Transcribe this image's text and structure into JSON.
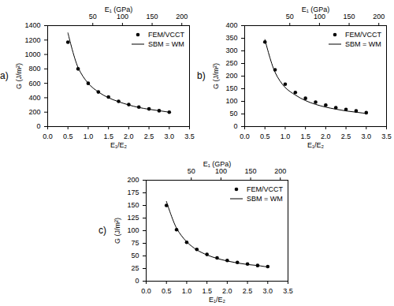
{
  "chart_data": [
    {
      "type": "line",
      "title": "a)",
      "xlabel": "E₁/E₂",
      "ylabel": "G (J/m²)",
      "x2label": "E₁ (GPa)",
      "xlim": [
        0,
        3.5
      ],
      "xticks": [
        {
          "value": 0,
          "label": "0.0"
        },
        {
          "value": 0.5,
          "label": "0.5"
        },
        {
          "value": 1,
          "label": "1.0"
        },
        {
          "value": 1.5,
          "label": "1.5"
        },
        {
          "value": 2,
          "label": "2.0"
        },
        {
          "value": 2.5,
          "label": "2.5"
        },
        {
          "value": 3,
          "label": "3.0"
        },
        {
          "value": 3.5,
          "label": "3.5"
        }
      ],
      "x2lim": [
        -26,
        213
      ],
      "x2ticks": [
        50,
        100,
        150,
        200
      ],
      "ylim": [
        0,
        1400
      ],
      "yticks": [
        0,
        200,
        400,
        600,
        800,
        1000,
        1200,
        1400
      ],
      "legend": "upper right",
      "grid": false,
      "x": [
        0.5,
        0.75,
        1.0,
        1.25,
        1.5,
        1.75,
        2.0,
        2.25,
        2.5,
        2.75,
        3.0
      ],
      "series": [
        {
          "name": "FEM/VCCT",
          "type": "scatter",
          "marker": "circle",
          "color": "#000000",
          "values": [
            1170,
            800,
            600,
            480,
            410,
            350,
            305,
            270,
            245,
            220,
            200
          ]
        },
        {
          "name": "SBM = WM",
          "type": "line",
          "line_style": "solid",
          "color": "#000000",
          "values": [
            1300,
            820,
            600,
            480,
            400,
            345,
            300,
            265,
            240,
            220,
            200
          ]
        }
      ]
    },
    {
      "type": "line",
      "title": "b)",
      "xlabel": "E₁/E₂",
      "ylabel": "G (J/m²)",
      "x2label": "E₁ (GPa)",
      "xlim": [
        0,
        3.5
      ],
      "xticks": [
        {
          "value": 0,
          "label": "0.0"
        },
        {
          "value": 0.5,
          "label": "0.5"
        },
        {
          "value": 1,
          "label": "1.0"
        },
        {
          "value": 1.5,
          "label": "1.5"
        },
        {
          "value": 2,
          "label": "2.0"
        },
        {
          "value": 2.5,
          "label": "2.5"
        },
        {
          "value": 3,
          "label": "3.0"
        },
        {
          "value": 3.5,
          "label": "3.5"
        }
      ],
      "x2lim": [
        -26,
        213
      ],
      "x2ticks": [
        50,
        100,
        150,
        200
      ],
      "ylim": [
        0,
        400
      ],
      "yticks": [
        0,
        50,
        100,
        150,
        200,
        250,
        300,
        350,
        400
      ],
      "legend": "upper right",
      "grid": false,
      "x": [
        0.5,
        0.75,
        1.0,
        1.25,
        1.5,
        1.75,
        2.0,
        2.25,
        2.5,
        2.75,
        3.0
      ],
      "series": [
        {
          "name": "FEM/VCCT",
          "type": "scatter",
          "marker": "circle",
          "color": "#000000",
          "values": [
            335,
            225,
            168,
            135,
            112,
            97,
            85,
            75,
            68,
            62,
            55
          ]
        },
        {
          "name": "SBM = WM",
          "type": "line",
          "line_style": "solid",
          "color": "#000000",
          "values": [
            345,
            215,
            155,
            125,
            103,
            88,
            77,
            69,
            62,
            57,
            52
          ]
        }
      ]
    },
    {
      "type": "line",
      "title": "c)",
      "xlabel": "E₁/E₂",
      "ylabel": "G (J/m²)",
      "x2label": "E₁ (GPa)",
      "xlim": [
        0,
        3.5
      ],
      "xticks": [
        {
          "value": 0,
          "label": "0.0"
        },
        {
          "value": 0.5,
          "label": "0.5"
        },
        {
          "value": 1,
          "label": "1.0"
        },
        {
          "value": 1.5,
          "label": "1.5"
        },
        {
          "value": 2,
          "label": "2.0"
        },
        {
          "value": 2.5,
          "label": "2.5"
        },
        {
          "value": 3,
          "label": "3.0"
        },
        {
          "value": 3.5,
          "label": "3.5"
        }
      ],
      "x2lim": [
        -26,
        213
      ],
      "x2ticks": [
        50,
        100,
        150,
        200
      ],
      "ylim": [
        0,
        200
      ],
      "yticks": [
        0,
        25,
        50,
        75,
        100,
        125,
        150,
        175,
        200
      ],
      "legend": "upper right",
      "grid": false,
      "x": [
        0.5,
        0.75,
        1.0,
        1.25,
        1.5,
        1.75,
        2.0,
        2.25,
        2.5,
        2.75,
        3.0
      ],
      "series": [
        {
          "name": "FEM/VCCT",
          "type": "scatter",
          "marker": "circle",
          "color": "#000000",
          "values": [
            150,
            102,
            77,
            63,
            53,
            46,
            41,
            37,
            34,
            31,
            29
          ]
        },
        {
          "name": "SBM = WM",
          "type": "line",
          "line_style": "solid",
          "color": "#000000",
          "values": [
            158,
            105,
            78,
            62,
            52,
            45,
            40,
            36,
            33,
            31,
            28
          ]
        }
      ]
    }
  ]
}
